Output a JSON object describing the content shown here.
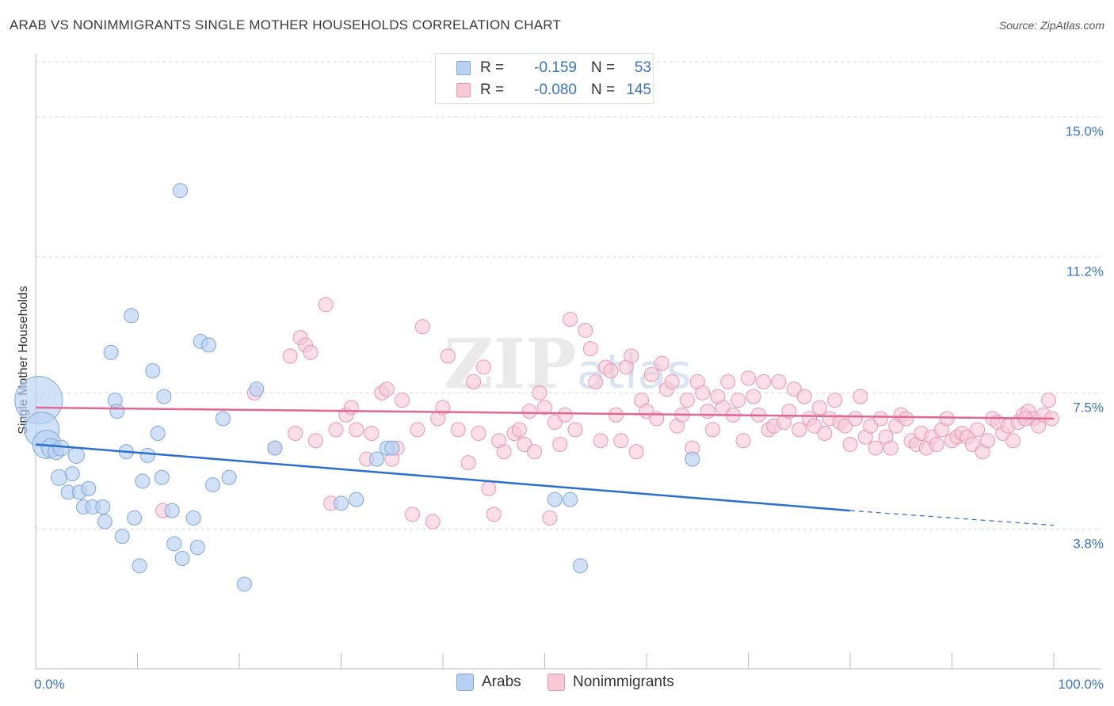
{
  "title": "ARAB VS NONIMMIGRANTS SINGLE MOTHER HOUSEHOLDS CORRELATION CHART",
  "source": "Source: ZipAtlas.com",
  "legend_stats": [
    {
      "r_label": "R =",
      "r_value": "-0.159",
      "n_label": "N =",
      "n_value": "53"
    },
    {
      "r_label": "R =",
      "r_value": "-0.080",
      "n_label": "N =",
      "n_value": "145"
    }
  ],
  "colors": {
    "arabs_fill": "#b8d1f2",
    "arabs_stroke": "#7fa6d9",
    "arabs_line": "#2a6fcf",
    "nonimm_fill": "#f8c8d7",
    "nonimm_stroke": "#e897b2",
    "nonimm_line": "#e06791",
    "tick_label": "#3a73c4",
    "grid": "#d6d6d6"
  },
  "chart_data": {
    "type": "scatter",
    "title": "ARAB VS NONIMMIGRANTS SINGLE MOTHER HOUSEHOLDS CORRELATION CHART",
    "xlabel": "",
    "ylabel": "Single Mother Households",
    "xlim": [
      0,
      100
    ],
    "ylim": [
      0,
      16.5
    ],
    "x_tick_labels": [
      "0.0%",
      "100.0%"
    ],
    "y_ticks": [
      3.8,
      7.5,
      11.2,
      15.0
    ],
    "y_tick_labels": [
      "3.8%",
      "7.5%",
      "11.2%",
      "15.0%"
    ],
    "grid": true,
    "legend_position": "bottom",
    "watermark": "ZIPatlas",
    "series": [
      {
        "name": "Arabs",
        "trend": {
          "x": [
            0,
            80,
            100
          ],
          "y": [
            6.1,
            4.3,
            3.9
          ],
          "solid_until_x": 80
        },
        "points": [
          [
            0.3,
            7.3,
            30
          ],
          [
            0.6,
            6.5,
            22
          ],
          [
            1.1,
            6.1,
            18
          ],
          [
            1.5,
            6.0,
            12
          ],
          [
            2.0,
            5.9,
            10
          ],
          [
            2.5,
            6.0,
            10
          ],
          [
            2.3,
            5.2,
            10
          ],
          [
            3.2,
            4.8,
            9
          ],
          [
            3.6,
            5.3,
            9
          ],
          [
            4.0,
            5.8,
            10
          ],
          [
            4.3,
            4.8,
            9
          ],
          [
            4.7,
            4.4,
            9
          ],
          [
            5.2,
            4.9,
            9
          ],
          [
            5.6,
            4.4,
            9
          ],
          [
            6.6,
            4.4,
            9
          ],
          [
            6.8,
            4.0,
            9
          ],
          [
            7.4,
            8.6,
            9
          ],
          [
            7.8,
            7.3,
            9
          ],
          [
            8.0,
            7.0,
            9
          ],
          [
            8.5,
            3.6,
            9
          ],
          [
            8.9,
            5.9,
            9
          ],
          [
            9.4,
            9.6,
            9
          ],
          [
            9.7,
            4.1,
            9
          ],
          [
            10.2,
            2.8,
            9
          ],
          [
            10.5,
            5.1,
            9
          ],
          [
            11.0,
            5.8,
            9
          ],
          [
            11.5,
            8.1,
            9
          ],
          [
            12.0,
            6.4,
            9
          ],
          [
            12.4,
            5.2,
            9
          ],
          [
            12.6,
            7.4,
            9
          ],
          [
            13.4,
            4.3,
            9
          ],
          [
            13.6,
            3.4,
            9
          ],
          [
            14.2,
            13.0,
            9
          ],
          [
            14.4,
            3.0,
            9
          ],
          [
            15.5,
            4.1,
            9
          ],
          [
            15.9,
            3.3,
            9
          ],
          [
            16.2,
            8.9,
            9
          ],
          [
            17.0,
            8.8,
            9
          ],
          [
            17.4,
            5.0,
            9
          ],
          [
            18.4,
            6.8,
            9
          ],
          [
            19.0,
            5.2,
            9
          ],
          [
            20.5,
            2.3,
            9
          ],
          [
            21.7,
            7.6,
            9
          ],
          [
            23.5,
            6.0,
            9
          ],
          [
            30.0,
            4.5,
            9
          ],
          [
            31.5,
            4.6,
            9
          ],
          [
            33.5,
            5.7,
            9
          ],
          [
            34.5,
            6.0,
            9
          ],
          [
            35.0,
            6.0,
            9
          ],
          [
            51.0,
            4.6,
            9
          ],
          [
            52.5,
            4.6,
            9
          ],
          [
            53.5,
            2.8,
            9
          ],
          [
            64.5,
            5.7,
            9
          ]
        ]
      },
      {
        "name": "Nonimmigrants",
        "trend": {
          "x": [
            0,
            100
          ],
          "y": [
            7.1,
            6.8
          ],
          "solid_until_x": 100
        },
        "points": [
          [
            12.5,
            4.3
          ],
          [
            21.5,
            7.5
          ],
          [
            23.5,
            6.0
          ],
          [
            25.0,
            8.5
          ],
          [
            25.5,
            6.4
          ],
          [
            26.0,
            9.0
          ],
          [
            26.5,
            8.8
          ],
          [
            27.0,
            8.6
          ],
          [
            27.5,
            6.2
          ],
          [
            28.5,
            9.9
          ],
          [
            29.0,
            4.5
          ],
          [
            29.5,
            6.5
          ],
          [
            30.5,
            6.9
          ],
          [
            31.0,
            7.1
          ],
          [
            31.5,
            6.5
          ],
          [
            32.5,
            5.7
          ],
          [
            33.0,
            6.4
          ],
          [
            34.0,
            7.5
          ],
          [
            34.5,
            7.6
          ],
          [
            35.0,
            5.7
          ],
          [
            35.5,
            6.0
          ],
          [
            36.0,
            7.3
          ],
          [
            37.0,
            4.2
          ],
          [
            37.5,
            6.5
          ],
          [
            38.0,
            9.3
          ],
          [
            39.0,
            4.0
          ],
          [
            39.5,
            6.8
          ],
          [
            40.0,
            7.1
          ],
          [
            40.5,
            8.5
          ],
          [
            41.5,
            6.5
          ],
          [
            42.5,
            5.6
          ],
          [
            43.0,
            7.8
          ],
          [
            43.5,
            6.4
          ],
          [
            44.0,
            8.2
          ],
          [
            44.5,
            4.9
          ],
          [
            45.0,
            4.2
          ],
          [
            45.5,
            6.2
          ],
          [
            46.0,
            5.9
          ],
          [
            47.0,
            6.4
          ],
          [
            47.5,
            6.5
          ],
          [
            48.0,
            6.1
          ],
          [
            48.5,
            7.0
          ],
          [
            49.0,
            5.9
          ],
          [
            49.5,
            7.5
          ],
          [
            50.0,
            7.1
          ],
          [
            50.5,
            4.1
          ],
          [
            51.0,
            6.7
          ],
          [
            51.5,
            6.1
          ],
          [
            52.0,
            6.9
          ],
          [
            52.5,
            9.5
          ],
          [
            53.0,
            6.5
          ],
          [
            54.0,
            9.2
          ],
          [
            54.5,
            8.7
          ],
          [
            55.0,
            7.8
          ],
          [
            55.5,
            6.2
          ],
          [
            56.0,
            8.2
          ],
          [
            56.5,
            8.1
          ],
          [
            57.0,
            6.9
          ],
          [
            57.5,
            6.2
          ],
          [
            58.0,
            8.2
          ],
          [
            58.5,
            8.5
          ],
          [
            59.0,
            5.9
          ],
          [
            59.5,
            7.3
          ],
          [
            60.0,
            7.0
          ],
          [
            60.5,
            8.0
          ],
          [
            61.0,
            6.8
          ],
          [
            61.5,
            8.3
          ],
          [
            62.0,
            7.6
          ],
          [
            62.5,
            7.8
          ],
          [
            63.0,
            6.6
          ],
          [
            63.5,
            6.9
          ],
          [
            64.0,
            7.3
          ],
          [
            64.5,
            6.0
          ],
          [
            65.0,
            7.8
          ],
          [
            65.5,
            7.5
          ],
          [
            66.0,
            7.0
          ],
          [
            66.5,
            6.5
          ],
          [
            67.0,
            7.4
          ],
          [
            67.5,
            7.1
          ],
          [
            68.0,
            7.8
          ],
          [
            68.5,
            6.9
          ],
          [
            69.0,
            7.3
          ],
          [
            69.5,
            6.2
          ],
          [
            70.0,
            7.9
          ],
          [
            70.5,
            7.4
          ],
          [
            71.0,
            6.9
          ],
          [
            71.5,
            7.8
          ],
          [
            72.0,
            6.5
          ],
          [
            72.5,
            6.6
          ],
          [
            73.0,
            7.8
          ],
          [
            73.5,
            6.7
          ],
          [
            74.0,
            7.0
          ],
          [
            74.5,
            7.6
          ],
          [
            75.0,
            6.5
          ],
          [
            75.5,
            7.4
          ],
          [
            76.0,
            6.8
          ],
          [
            76.5,
            6.6
          ],
          [
            77.0,
            7.1
          ],
          [
            77.5,
            6.4
          ],
          [
            78.0,
            6.8
          ],
          [
            78.5,
            7.3
          ],
          [
            79.0,
            6.7
          ],
          [
            79.5,
            6.6
          ],
          [
            80.0,
            6.1
          ],
          [
            80.5,
            6.8
          ],
          [
            81.0,
            7.4
          ],
          [
            81.5,
            6.3
          ],
          [
            82.0,
            6.6
          ],
          [
            82.5,
            6.0
          ],
          [
            83.0,
            6.8
          ],
          [
            83.5,
            6.3
          ],
          [
            84.0,
            6.0
          ],
          [
            84.5,
            6.6
          ],
          [
            85.0,
            6.9
          ],
          [
            85.5,
            6.8
          ],
          [
            86.0,
            6.2
          ],
          [
            86.5,
            6.1
          ],
          [
            87.0,
            6.4
          ],
          [
            87.5,
            6.0
          ],
          [
            88.0,
            6.3
          ],
          [
            88.5,
            6.1
          ],
          [
            89.0,
            6.5
          ],
          [
            89.5,
            6.8
          ],
          [
            90.0,
            6.2
          ],
          [
            90.5,
            6.3
          ],
          [
            91.0,
            6.4
          ],
          [
            91.5,
            6.3
          ],
          [
            92.0,
            6.1
          ],
          [
            92.5,
            6.5
          ],
          [
            93.0,
            5.9
          ],
          [
            93.5,
            6.2
          ],
          [
            94.0,
            6.8
          ],
          [
            94.5,
            6.7
          ],
          [
            95.0,
            6.4
          ],
          [
            95.5,
            6.6
          ],
          [
            96.0,
            6.2
          ],
          [
            96.5,
            6.7
          ],
          [
            97.0,
            6.9
          ],
          [
            97.5,
            7.0
          ],
          [
            98.0,
            6.8
          ],
          [
            98.5,
            6.6
          ],
          [
            99.0,
            6.9
          ],
          [
            99.5,
            7.3
          ],
          [
            99.8,
            6.8
          ],
          [
            97.2,
            6.8
          ]
        ]
      }
    ]
  },
  "legend_items": [
    {
      "label": "Arabs"
    },
    {
      "label": "Nonimmigrants"
    }
  ]
}
